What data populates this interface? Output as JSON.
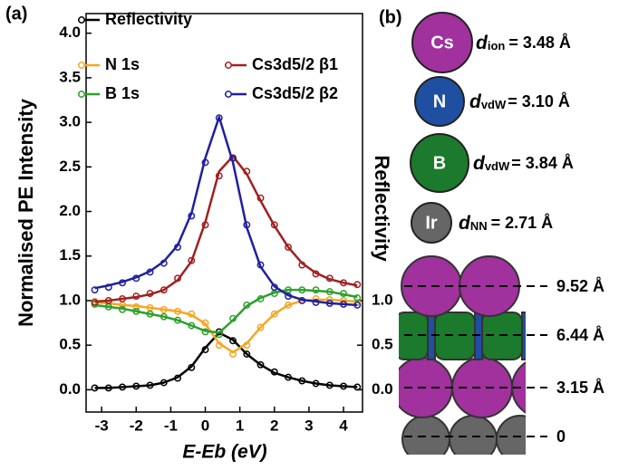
{
  "chart_data": {
    "type": "line",
    "label": "(a)",
    "y_label": "Normalised PE Intensity",
    "y2_label": "Reflectivity",
    "x_label": "E-Eb (eV)",
    "x": [
      -3.2,
      -2.8,
      -2.4,
      -2.0,
      -1.6,
      -1.2,
      -0.8,
      -0.4,
      0.0,
      0.4,
      0.8,
      1.2,
      1.6,
      2.0,
      2.4,
      2.8,
      3.2,
      3.6,
      4.0,
      4.4
    ],
    "series": [
      {
        "name": "Reflectivity",
        "color": "#000000",
        "axis": "y2",
        "values": [
          0.02,
          0.02,
          0.03,
          0.04,
          0.05,
          0.08,
          0.13,
          0.25,
          0.45,
          0.65,
          0.55,
          0.4,
          0.28,
          0.2,
          0.14,
          0.1,
          0.07,
          0.05,
          0.04,
          0.03
        ],
        "fit": [
          0.02,
          0.02,
          0.03,
          0.04,
          0.05,
          0.08,
          0.14,
          0.26,
          0.47,
          0.64,
          0.56,
          0.4,
          0.28,
          0.19,
          0.14,
          0.1,
          0.07,
          0.05,
          0.04,
          0.03
        ]
      },
      {
        "name": "N 1s",
        "color": "#f5a623",
        "values": [
          0.99,
          0.97,
          0.95,
          0.93,
          0.92,
          0.9,
          0.88,
          0.85,
          0.75,
          0.5,
          0.4,
          0.5,
          0.7,
          0.85,
          0.95,
          1.0,
          1.02,
          1.01,
          1.0,
          0.98
        ],
        "fit": [
          0.98,
          0.97,
          0.95,
          0.94,
          0.92,
          0.9,
          0.88,
          0.84,
          0.74,
          0.52,
          0.42,
          0.52,
          0.7,
          0.85,
          0.95,
          1.0,
          1.01,
          1.01,
          1.0,
          0.99
        ]
      },
      {
        "name": "B 1s",
        "color": "#2ca02c",
        "values": [
          0.96,
          0.93,
          0.9,
          0.88,
          0.85,
          0.82,
          0.78,
          0.72,
          0.65,
          0.62,
          0.8,
          0.95,
          1.02,
          1.08,
          1.12,
          1.12,
          1.12,
          1.1,
          1.08,
          1.03
        ],
        "fit": [
          0.95,
          0.93,
          0.91,
          0.88,
          0.85,
          0.82,
          0.78,
          0.72,
          0.66,
          0.64,
          0.78,
          0.94,
          1.03,
          1.09,
          1.12,
          1.12,
          1.11,
          1.1,
          1.07,
          1.04
        ]
      },
      {
        "name": "Cs3d5/2 β1",
        "color": "#a02020",
        "values": [
          0.98,
          1.0,
          1.02,
          1.05,
          1.08,
          1.12,
          1.25,
          1.45,
          1.85,
          2.4,
          2.6,
          2.45,
          2.15,
          1.85,
          1.6,
          1.4,
          1.3,
          1.25,
          1.2,
          1.18
        ],
        "fit": [
          0.99,
          1.0,
          1.02,
          1.04,
          1.07,
          1.12,
          1.23,
          1.44,
          1.88,
          2.45,
          2.62,
          2.42,
          2.12,
          1.84,
          1.6,
          1.42,
          1.31,
          1.24,
          1.2,
          1.17
        ]
      },
      {
        "name": "Cs3d5/2 β2",
        "color": "#1f1fa0",
        "values": [
          1.12,
          1.15,
          1.2,
          1.25,
          1.32,
          1.42,
          1.6,
          1.95,
          2.55,
          3.05,
          2.6,
          1.85,
          1.4,
          1.15,
          1.05,
          1.0,
          0.98,
          0.97,
          0.96,
          0.95
        ],
        "fit": [
          1.14,
          1.17,
          1.21,
          1.26,
          1.33,
          1.44,
          1.62,
          1.98,
          2.6,
          3.06,
          2.55,
          1.82,
          1.38,
          1.16,
          1.06,
          1.01,
          0.99,
          0.97,
          0.96,
          0.95
        ]
      }
    ],
    "xlim": [
      -3.45,
      4.55
    ],
    "ylim": [
      -0.25,
      4.22
    ],
    "y2lim": [
      -0.25,
      4.22
    ],
    "xticks": [
      -3,
      -2,
      -1,
      0,
      1,
      2,
      3,
      4
    ],
    "yticks": [
      {
        "value": 0,
        "label": "0.0"
      },
      {
        "value": 0.5,
        "label": "0.5"
      },
      {
        "value": 1,
        "label": "1.0"
      },
      {
        "value": 1.5,
        "label": "1.5"
      },
      {
        "value": 2,
        "label": "2.0"
      },
      {
        "value": 2.5,
        "label": "2.5"
      },
      {
        "value": 3,
        "label": "3.0"
      },
      {
        "value": 3.5,
        "label": "3.5"
      },
      {
        "value": 4,
        "label": "4.0"
      }
    ],
    "y2ticks": [
      {
        "value": 0,
        "label": "0.0"
      },
      {
        "value": 0.5,
        "label": "0.5"
      },
      {
        "value": 1,
        "label": "1.0"
      }
    ]
  },
  "structure": {
    "label": "(b)",
    "atoms": [
      {
        "symbol": "Cs",
        "d": "d",
        "sub": "ion",
        "value": "= 3.48 Å"
      },
      {
        "symbol": "N",
        "d": "d",
        "sub": "vdW",
        "value": "= 3.10 Å"
      },
      {
        "symbol": "B",
        "d": "d",
        "sub": "vdW",
        "value": "= 3.84 Å"
      },
      {
        "symbol": "Ir",
        "d": "d",
        "sub": "NN",
        "value": "= 2.71 Å"
      }
    ],
    "layers": [
      "9.52 Å",
      "6.44 Å",
      "3.15 Å",
      "0"
    ]
  }
}
